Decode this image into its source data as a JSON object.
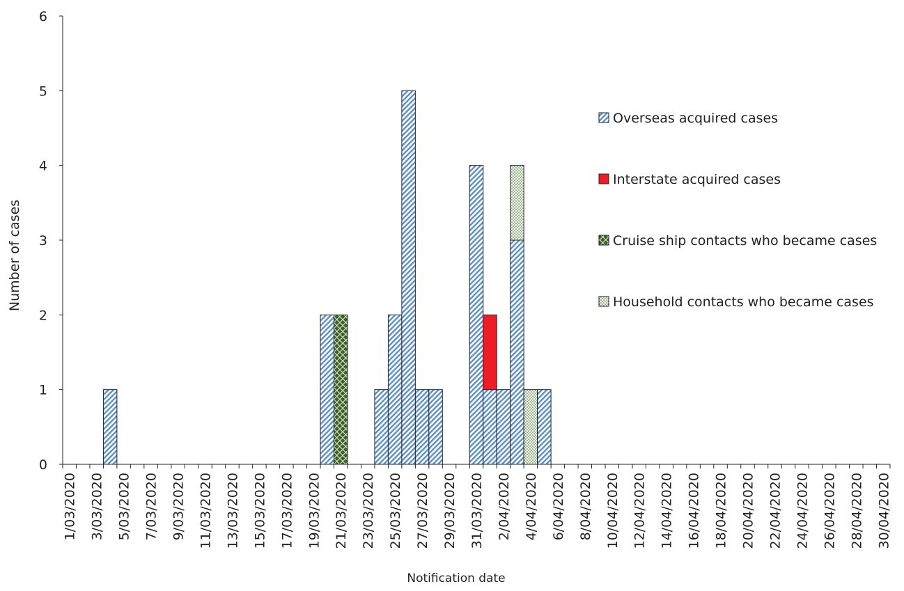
{
  "chart_data": {
    "type": "stacked_bar",
    "x_label": "Notification date",
    "y_label": "Number of cases",
    "categories": [
      "1/03/2020",
      null,
      "3/03/2020",
      null,
      "5/03/2020",
      null,
      "7/03/2020",
      null,
      "9/03/2020",
      null,
      "11/03/2020",
      null,
      "13/03/2020",
      null,
      "15/03/2020",
      null,
      "17/03/2020",
      null,
      "19/03/2020",
      null,
      "21/03/2020",
      null,
      "23/03/2020",
      null,
      "25/03/2020",
      null,
      "27/03/2020",
      null,
      "29/03/2020",
      null,
      "31/03/2020",
      null,
      "2/04/2020",
      null,
      "4/04/2020",
      null,
      "6/04/2020",
      null,
      "8/04/2020",
      null,
      "10/04/2020",
      null,
      "12/04/2020",
      null,
      "14/04/2020",
      null,
      "16/04/2020",
      null,
      "18/04/2020",
      null,
      "20/04/2020",
      null,
      "22/04/2020",
      null,
      "24/04/2020",
      null,
      "26/04/2020",
      null,
      "28/04/2020",
      null,
      "30/04/2020"
    ],
    "series": [
      {
        "name": "Overseas acquired cases",
        "color": "#5b8fc9",
        "pattern": "hatch",
        "values": [
          0,
          0,
          0,
          1,
          0,
          0,
          0,
          0,
          0,
          0,
          0,
          0,
          0,
          0,
          0,
          0,
          0,
          0,
          0,
          2,
          0,
          0,
          0,
          1,
          2,
          5,
          1,
          1,
          0,
          0,
          4,
          1,
          1,
          3,
          0,
          1,
          0,
          0,
          0,
          0,
          0,
          0,
          0,
          0,
          0,
          0,
          0,
          0,
          0,
          0,
          0,
          0,
          0,
          0,
          0,
          0,
          0,
          0,
          0,
          0,
          0
        ]
      },
      {
        "name": "Interstate acquired cases",
        "color": "#ee1c24",
        "pattern": "solid",
        "values": [
          0,
          0,
          0,
          0,
          0,
          0,
          0,
          0,
          0,
          0,
          0,
          0,
          0,
          0,
          0,
          0,
          0,
          0,
          0,
          0,
          0,
          0,
          0,
          0,
          0,
          0,
          0,
          0,
          0,
          0,
          0,
          1,
          0,
          0,
          0,
          0,
          0,
          0,
          0,
          0,
          0,
          0,
          0,
          0,
          0,
          0,
          0,
          0,
          0,
          0,
          0,
          0,
          0,
          0,
          0,
          0,
          0,
          0,
          0,
          0,
          0
        ]
      },
      {
        "name": "Cruise ship contacts who became cases",
        "color": "#3b5e2b",
        "pattern": "cross",
        "values": [
          0,
          0,
          0,
          0,
          0,
          0,
          0,
          0,
          0,
          0,
          0,
          0,
          0,
          0,
          0,
          0,
          0,
          0,
          0,
          0,
          2,
          0,
          0,
          0,
          0,
          0,
          0,
          0,
          0,
          0,
          0,
          0,
          0,
          0,
          0,
          0,
          0,
          0,
          0,
          0,
          0,
          0,
          0,
          0,
          0,
          0,
          0,
          0,
          0,
          0,
          0,
          0,
          0,
          0,
          0,
          0,
          0,
          0,
          0,
          0,
          0
        ]
      },
      {
        "name": "Household contacts who became cases",
        "color": "#3b6e2b",
        "pattern": "dots",
        "values": [
          0,
          0,
          0,
          0,
          0,
          0,
          0,
          0,
          0,
          0,
          0,
          0,
          0,
          0,
          0,
          0,
          0,
          0,
          0,
          0,
          0,
          0,
          0,
          0,
          0,
          0,
          0,
          0,
          0,
          0,
          0,
          0,
          0,
          1,
          1,
          0,
          0,
          0,
          0,
          0,
          0,
          0,
          0,
          0,
          0,
          0,
          0,
          0,
          0,
          0,
          0,
          0,
          0,
          0,
          0,
          0,
          0,
          0,
          0,
          0,
          0
        ]
      }
    ],
    "ylim": [
      0,
      6
    ],
    "yticks": [
      0,
      1,
      2,
      3,
      4,
      5,
      6
    ],
    "grid": false,
    "legend": "right"
  }
}
